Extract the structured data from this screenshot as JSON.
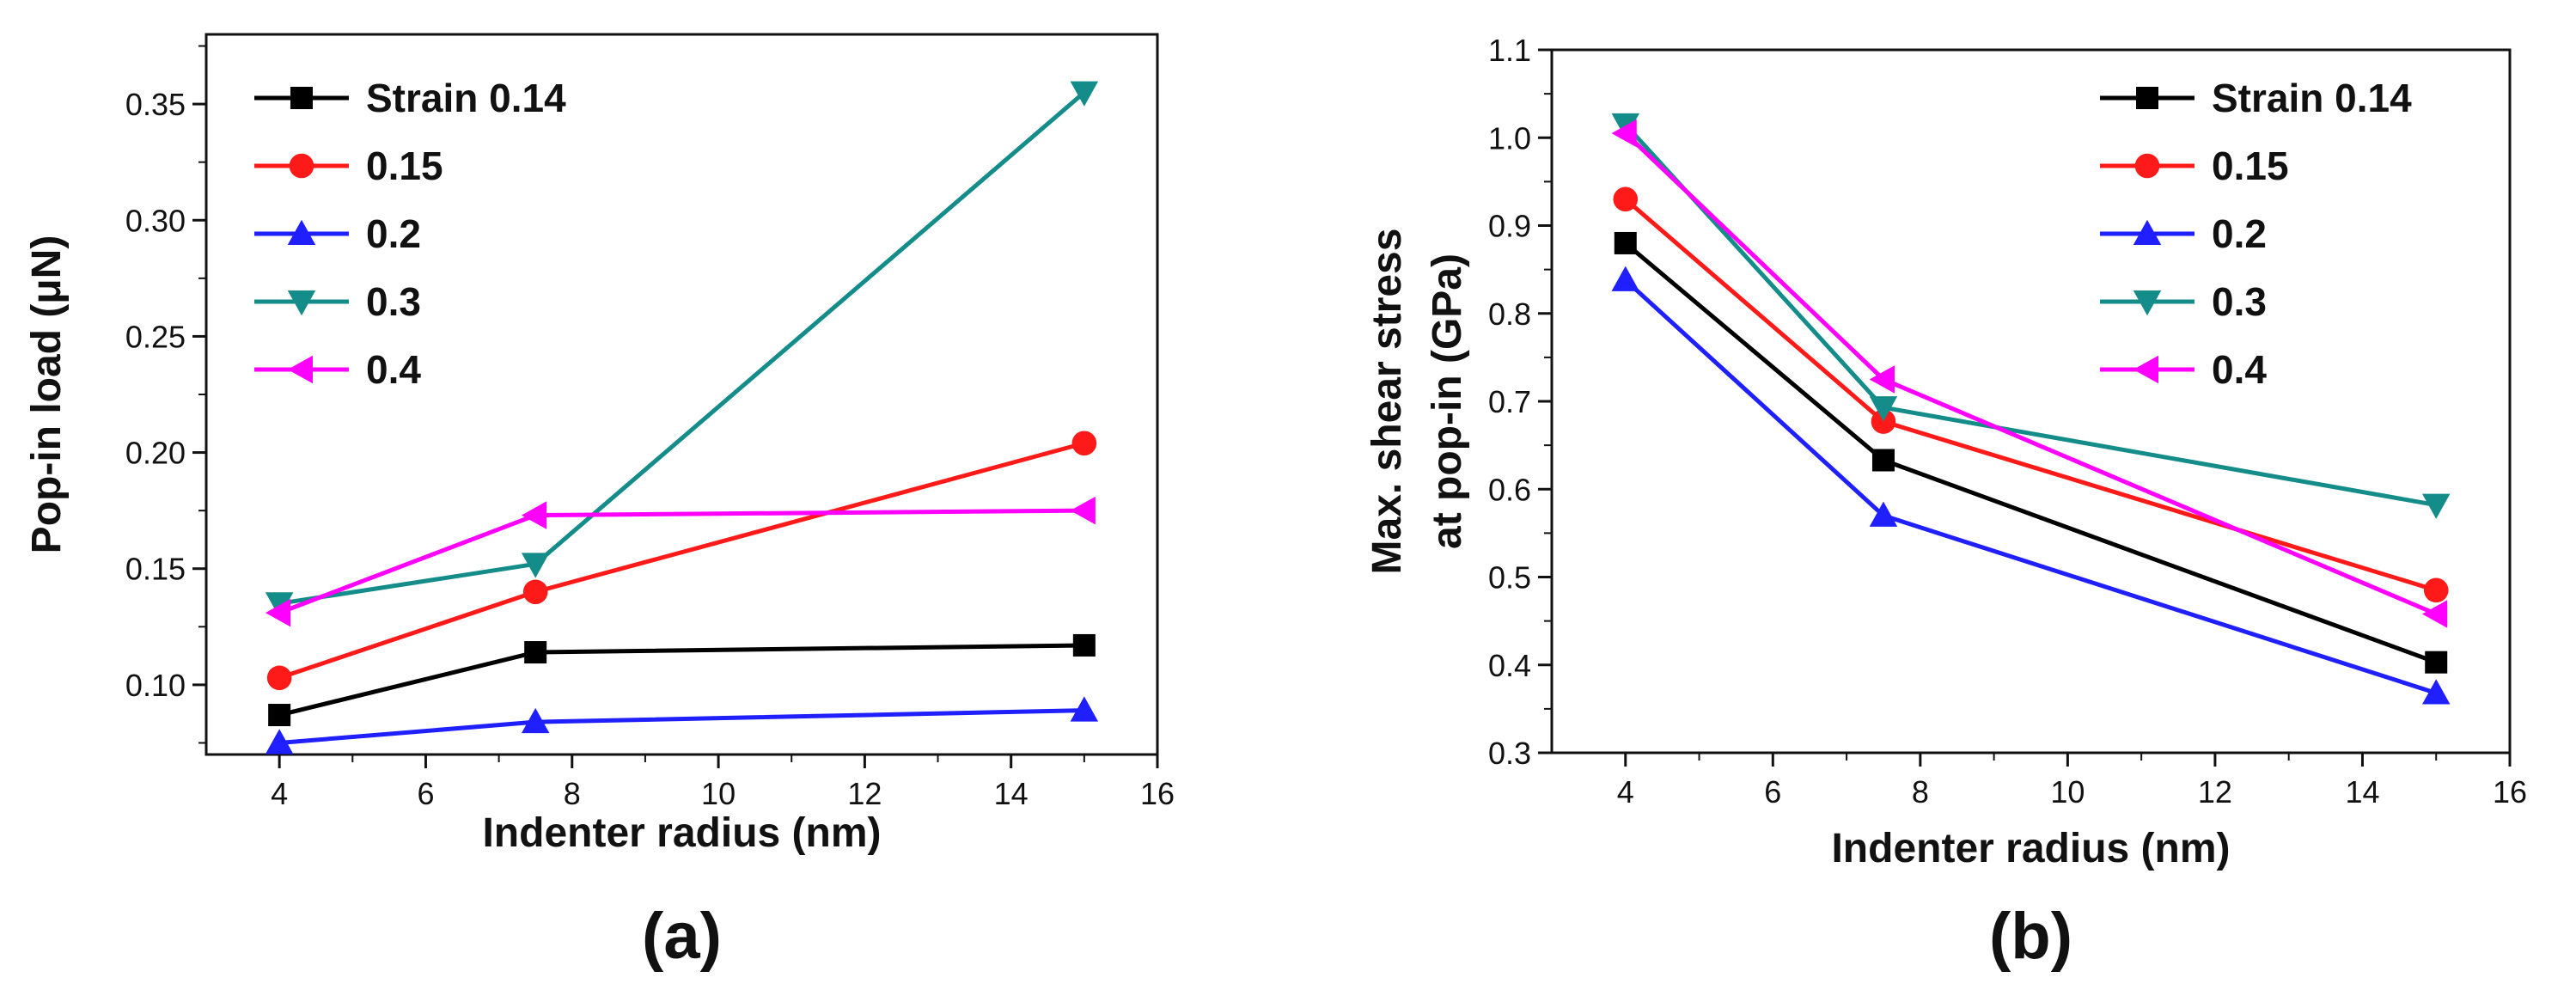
{
  "figure": {
    "panel_labels": [
      "(a)",
      "(b)"
    ]
  },
  "colors": {
    "axis": "#111111",
    "series": [
      "#000000",
      "#ff1a1a",
      "#1f1fff",
      "#138c8a",
      "#ff00ff"
    ]
  },
  "markers": [
    "square",
    "circle",
    "triangle-up",
    "triangle-down",
    "triangle-left"
  ],
  "chart_data": [
    {
      "type": "line",
      "panel_label": "(a)",
      "title": "",
      "xlabel": "Indenter radius (nm)",
      "ylabel": "Pop-in load (μN)",
      "xlim": [
        3,
        16
      ],
      "ylim": [
        0.07,
        0.38
      ],
      "xticks": [
        4,
        6,
        8,
        10,
        12,
        14,
        16
      ],
      "xtick_labels": [
        "4",
        "6",
        "8",
        "10",
        "12",
        "14",
        "16"
      ],
      "yticks": [
        0.1,
        0.15,
        0.2,
        0.25,
        0.3,
        0.35
      ],
      "ytick_labels": [
        "0.10",
        "0.15",
        "0.20",
        "0.25",
        "0.30",
        "0.35"
      ],
      "legend_position": "top-left",
      "x": [
        4,
        7.5,
        15
      ],
      "series": [
        {
          "name": "Strain 0.14",
          "values": [
            0.087,
            0.114,
            0.117
          ]
        },
        {
          "name": "0.15",
          "values": [
            0.103,
            0.14,
            0.204
          ]
        },
        {
          "name": "0.2",
          "values": [
            0.075,
            0.084,
            0.089
          ]
        },
        {
          "name": "0.3",
          "values": [
            0.135,
            0.152,
            0.355
          ]
        },
        {
          "name": "0.4",
          "values": [
            0.131,
            0.173,
            0.175
          ]
        }
      ]
    },
    {
      "type": "line",
      "panel_label": "(b)",
      "title": "",
      "xlabel": "Indenter radius (nm)",
      "ylabel_lines": [
        "Max. shear stress",
        "at pop-in (GPa)"
      ],
      "xlim": [
        3,
        16
      ],
      "ylim": [
        0.3,
        1.1
      ],
      "xticks": [
        4,
        6,
        8,
        10,
        12,
        14,
        16
      ],
      "xtick_labels": [
        "4",
        "6",
        "8",
        "10",
        "12",
        "14",
        "16"
      ],
      "yticks": [
        0.3,
        0.4,
        0.5,
        0.6,
        0.7,
        0.8,
        0.9,
        1.0,
        1.1
      ],
      "ytick_labels": [
        "0.3",
        "0.4",
        "0.5",
        "0.6",
        "0.7",
        "0.8",
        "0.9",
        "1.0",
        "1.1"
      ],
      "legend_position": "top-right",
      "x": [
        4,
        7.5,
        15
      ],
      "series": [
        {
          "name": "Strain 0.14",
          "values": [
            0.88,
            0.633,
            0.403
          ]
        },
        {
          "name": "0.15",
          "values": [
            0.93,
            0.677,
            0.485
          ]
        },
        {
          "name": "0.2",
          "values": [
            0.838,
            0.57,
            0.368
          ]
        },
        {
          "name": "0.3",
          "values": [
            1.015,
            0.693,
            0.582
          ]
        },
        {
          "name": "0.4",
          "values": [
            1.005,
            0.725,
            0.458
          ]
        }
      ]
    }
  ]
}
